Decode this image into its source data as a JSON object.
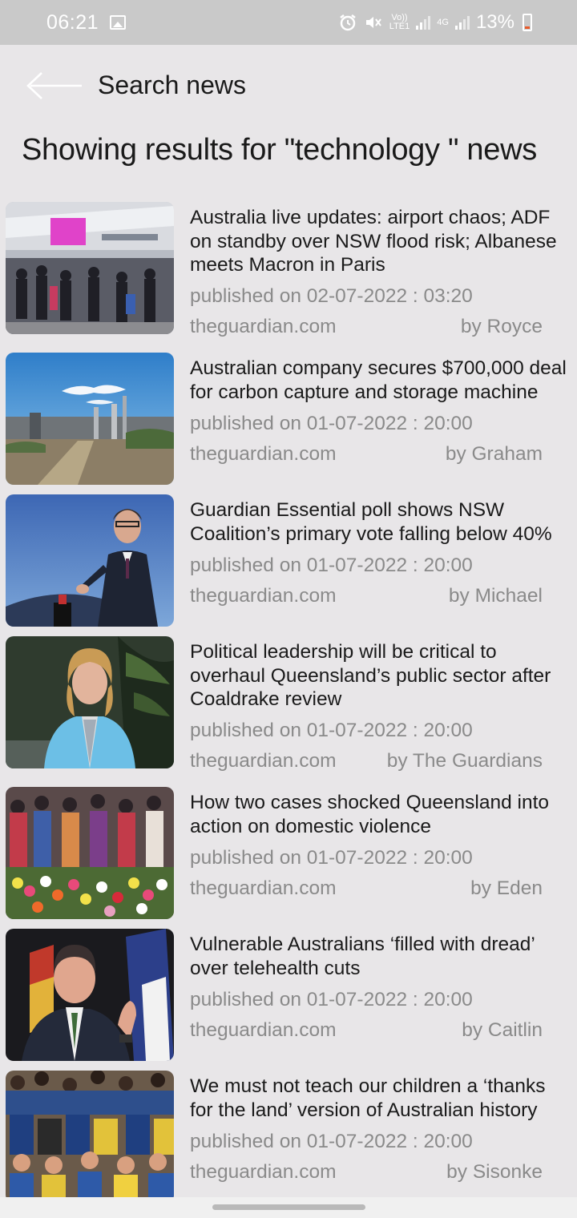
{
  "status_bar": {
    "time": "06:21",
    "network_label_top": "Vo))",
    "network_label_bottom": "LTE1",
    "network_type": "4G",
    "battery": "13%",
    "icons": [
      "gallery-icon",
      "alarm-icon",
      "mute-icon",
      "signal-icon",
      "battery-icon"
    ]
  },
  "app_bar": {
    "title": "Search news",
    "back_icon": "arrow-left-icon"
  },
  "results_heading": "Showing results for \"technology \" news",
  "articles": [
    {
      "title": "Australia live updates: airport chaos; ADF on standby over NSW flood risk; Albanese meets Macron in Paris",
      "published": "published on 02-07-2022 : 03:20",
      "source": "theguardian.com",
      "author": "by Royce"
    },
    {
      "title": "Australian company secures $700,000 deal for carbon capture and storage machine",
      "published": "published on 01-07-2022 : 20:00",
      "source": "theguardian.com",
      "author": "by Graham"
    },
    {
      "title": "Guardian Essential poll shows NSW Coalition’s primary vote falling below 40%",
      "published": "published on 01-07-2022 : 20:00",
      "source": "theguardian.com",
      "author": "by Michael"
    },
    {
      "title": "Political leadership will be critical to overhaul Queensland’s public sector after Coaldrake review",
      "published": "published on 01-07-2022 : 20:00",
      "source": "theguardian.com",
      "author": "by The Guardians"
    },
    {
      "title": "How two cases shocked Queensland into action on domestic violence",
      "published": "published on 01-07-2022 : 20:00",
      "source": "theguardian.com",
      "author": "by Eden"
    },
    {
      "title": "Vulnerable Australians ‘filled with dread’ over telehealth cuts",
      "published": "published on 01-07-2022 : 20:00",
      "source": "theguardian.com",
      "author": "by Caitlin"
    },
    {
      "title": "We must not teach our children a ‘thanks for the land’ version of Australian history",
      "published": "published on 01-07-2022 : 20:00",
      "source": "theguardian.com",
      "author": "by Sisonke"
    }
  ],
  "colors": {
    "background": "#e8e6e8",
    "status_bar": "#c9c9c9",
    "text_primary": "#1a1a1a",
    "text_secondary": "#8a8a8a",
    "battery_low": "#e85a2a"
  }
}
